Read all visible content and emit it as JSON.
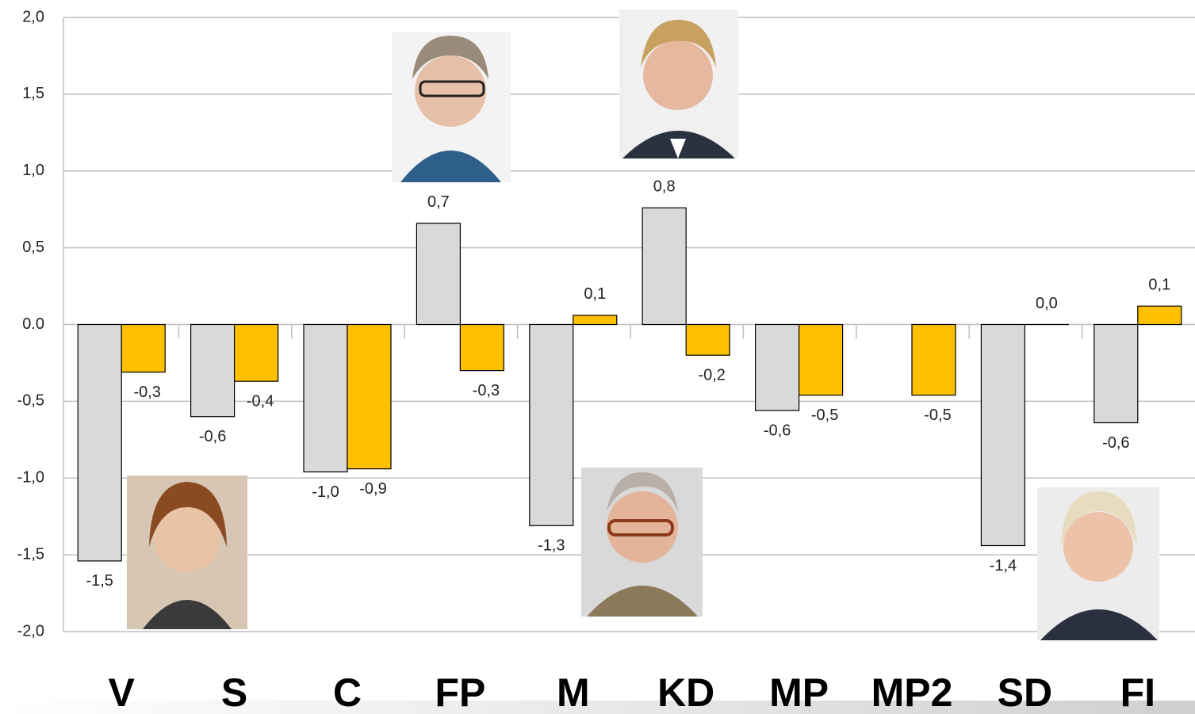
{
  "chart_data": {
    "type": "bar",
    "categories": [
      "V",
      "S",
      "C",
      "FP",
      "M",
      "KD",
      "MP",
      "MP2",
      "SD",
      "FI"
    ],
    "series": [
      {
        "color": "#d9d9d9",
        "values": [
          -1.54,
          -0.6,
          -0.96,
          0.66,
          -1.31,
          0.76,
          -0.56,
          null,
          -1.44,
          -0.64
        ],
        "value_labels": [
          "-1,5",
          "-0,6",
          "-1,0",
          "0,7",
          "-1,3",
          "0,8",
          "-0,6",
          null,
          "-1,4",
          "-0,6"
        ]
      },
      {
        "color": "#ffc000",
        "values": [
          -0.31,
          -0.37,
          -0.94,
          -0.3,
          0.06,
          -0.2,
          -0.46,
          -0.46,
          0.0,
          0.12
        ],
        "value_labels": [
          "-0,3",
          "-0,4",
          "-0,9",
          "-0,3",
          "0,1",
          "-0,2",
          "-0,5",
          "-0,5",
          "0,0",
          "0,1"
        ]
      }
    ],
    "ylim": [
      -2,
      2
    ],
    "yticks": [
      {
        "value": -2,
        "label": "-2,0"
      },
      {
        "value": -1.5,
        "label": "-1,5"
      },
      {
        "value": -1,
        "label": "-1,0"
      },
      {
        "value": -0.5,
        "label": "-0,5"
      },
      {
        "value": 0,
        "label": "0.0"
      },
      {
        "value": 0.5,
        "label": "0,5"
      },
      {
        "value": 1,
        "label": "1,0"
      },
      {
        "value": 1.5,
        "label": "1,5"
      },
      {
        "value": 2,
        "label": "2,0"
      }
    ],
    "grid": true
  }
}
